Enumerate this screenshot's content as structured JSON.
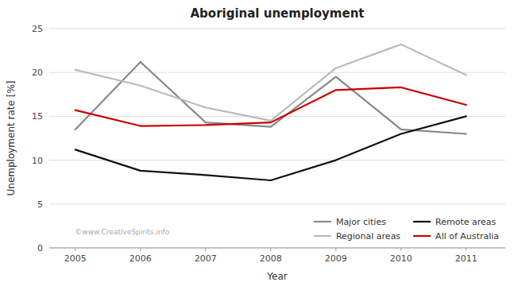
{
  "chart_data": {
    "type": "line",
    "title": "Aboriginal unemployment",
    "x_label": "Year",
    "y_label": "Unemployment rate [%]",
    "x": [
      2005,
      2006,
      2007,
      2008,
      2009,
      2010,
      2011
    ],
    "series": [
      {
        "name": "Major cities",
        "color": "#888888",
        "values": [
          13.5,
          21.2,
          14.3,
          13.8,
          19.5,
          13.5,
          13.0
        ]
      },
      {
        "name": "Regional areas",
        "color": "#bbbbbb",
        "values": [
          20.3,
          18.5,
          16.0,
          14.5,
          20.5,
          23.2,
          19.7
        ]
      },
      {
        "name": "Remote areas",
        "color": "#111111",
        "values": [
          11.2,
          8.8,
          8.3,
          7.7,
          10.0,
          13.0,
          15.0
        ]
      },
      {
        "name": "All of Australia",
        "color": "#cc0000",
        "values": [
          15.7,
          13.9,
          14.0,
          14.3,
          18.0,
          18.3,
          16.3
        ]
      }
    ],
    "xlim": [
      2004.6,
      2011.6
    ],
    "xticks": [
      2005,
      2006,
      2007,
      2008,
      2009,
      2010,
      2011
    ],
    "ylim": [
      0,
      25
    ],
    "yticks": [
      0,
      5,
      10,
      15,
      20,
      25
    ],
    "grid": true,
    "legend": "lower-right",
    "annotation": "©www.CreativeSpirits.info"
  }
}
